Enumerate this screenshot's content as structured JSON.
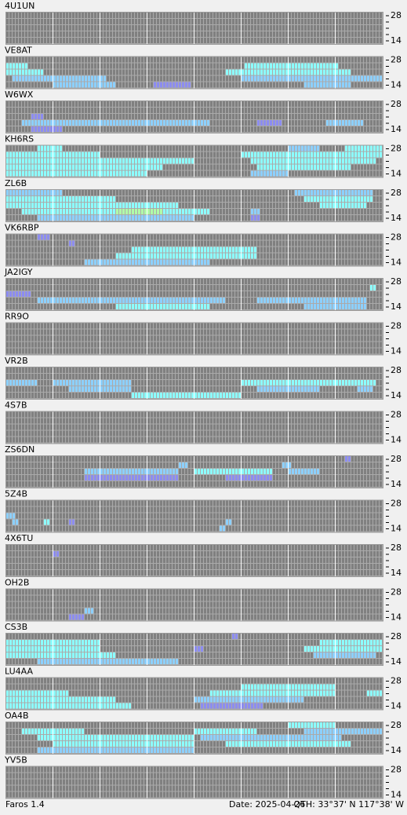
{
  "band_labels": {
    "top": "28",
    "bottom": "14"
  },
  "colors": [
    "#808080",
    "#8c8cf0",
    "#8cd0ff",
    "#8cffff",
    "#b0ffa8"
  ],
  "panels": [
    {
      "name": "4U1UN",
      "runs": []
    },
    {
      "name": "VE8AT",
      "runs": [
        [
          1,
          0,
          7,
          3
        ],
        [
          2,
          0,
          12,
          3
        ],
        [
          3,
          2,
          30,
          2
        ],
        [
          4,
          15,
          20,
          2
        ],
        [
          4,
          47,
          12,
          1
        ],
        [
          2,
          70,
          40,
          3
        ],
        [
          1,
          76,
          30,
          3
        ],
        [
          3,
          75,
          45,
          2
        ],
        [
          4,
          95,
          15,
          2
        ]
      ]
    },
    {
      "name": "W6WX",
      "runs": [
        [
          3,
          5,
          60,
          2
        ],
        [
          4,
          8,
          10,
          1
        ],
        [
          2,
          8,
          4,
          1
        ],
        [
          3,
          80,
          8,
          1
        ],
        [
          3,
          102,
          12,
          2
        ]
      ]
    },
    {
      "name": "KH6RS",
      "runs": [
        [
          0,
          10,
          8,
          3
        ],
        [
          1,
          0,
          30,
          3
        ],
        [
          2,
          0,
          60,
          3
        ],
        [
          3,
          0,
          50,
          3
        ],
        [
          4,
          0,
          45,
          3
        ],
        [
          1,
          75,
          45,
          3
        ],
        [
          2,
          78,
          40,
          3
        ],
        [
          3,
          80,
          30,
          3
        ],
        [
          0,
          90,
          10,
          2
        ],
        [
          0,
          108,
          12,
          3
        ],
        [
          4,
          78,
          12,
          2
        ]
      ]
    },
    {
      "name": "ZL6B",
      "runs": [
        [
          0,
          0,
          18,
          2
        ],
        [
          1,
          0,
          35,
          3
        ],
        [
          2,
          0,
          55,
          3
        ],
        [
          3,
          5,
          60,
          3
        ],
        [
          4,
          10,
          50,
          2
        ],
        [
          3,
          35,
          15,
          4
        ],
        [
          0,
          92,
          25,
          2
        ],
        [
          1,
          95,
          22,
          3
        ],
        [
          2,
          100,
          15,
          3
        ],
        [
          3,
          78,
          3,
          2
        ],
        [
          4,
          78,
          3,
          1
        ]
      ]
    },
    {
      "name": "VK6RBP",
      "runs": [
        [
          0,
          10,
          4,
          1
        ],
        [
          1,
          20,
          2,
          1
        ],
        [
          2,
          40,
          40,
          3
        ],
        [
          3,
          35,
          45,
          3
        ],
        [
          4,
          25,
          40,
          2
        ]
      ]
    },
    {
      "name": "JA2IGY",
      "runs": [
        [
          2,
          0,
          8,
          1
        ],
        [
          3,
          10,
          60,
          2
        ],
        [
          4,
          35,
          30,
          3
        ],
        [
          3,
          80,
          35,
          2
        ],
        [
          1,
          116,
          2,
          3
        ],
        [
          4,
          95,
          20,
          2
        ]
      ]
    },
    {
      "name": "RR9O",
      "runs": []
    },
    {
      "name": "VR2B",
      "runs": [
        [
          2,
          0,
          10,
          2
        ],
        [
          2,
          15,
          25,
          2
        ],
        [
          3,
          20,
          20,
          2
        ],
        [
          4,
          40,
          35,
          3
        ],
        [
          2,
          75,
          35,
          3
        ],
        [
          3,
          80,
          20,
          2
        ],
        [
          2,
          110,
          8,
          3
        ],
        [
          3,
          112,
          5,
          2
        ]
      ]
    },
    {
      "name": "4S7B",
      "runs": []
    },
    {
      "name": "ZS6DN",
      "runs": [
        [
          1,
          55,
          3,
          2
        ],
        [
          2,
          25,
          30,
          2
        ],
        [
          3,
          25,
          30,
          1
        ],
        [
          2,
          60,
          25,
          3
        ],
        [
          3,
          70,
          15,
          1
        ],
        [
          1,
          88,
          3,
          2
        ],
        [
          2,
          90,
          10,
          2
        ],
        [
          0,
          108,
          2,
          1
        ]
      ]
    },
    {
      "name": "5Z4B",
      "runs": [
        [
          2,
          0,
          3,
          2
        ],
        [
          3,
          2,
          2,
          2
        ],
        [
          3,
          12,
          2,
          3
        ],
        [
          3,
          20,
          2,
          1
        ],
        [
          4,
          68,
          2,
          2
        ],
        [
          3,
          70,
          2,
          2
        ]
      ]
    },
    {
      "name": "4X6TU",
      "runs": [
        [
          1,
          15,
          2,
          1
        ]
      ]
    },
    {
      "name": "OH2B",
      "runs": [
        [
          3,
          25,
          3,
          2
        ],
        [
          4,
          20,
          5,
          1
        ]
      ]
    },
    {
      "name": "CS3B",
      "runs": [
        [
          1,
          0,
          30,
          3
        ],
        [
          2,
          0,
          30,
          3
        ],
        [
          3,
          0,
          35,
          3
        ],
        [
          4,
          10,
          45,
          2
        ],
        [
          2,
          60,
          3,
          1
        ],
        [
          1,
          100,
          20,
          3
        ],
        [
          2,
          95,
          25,
          3
        ],
        [
          3,
          98,
          20,
          2
        ],
        [
          0,
          72,
          2,
          1
        ]
      ]
    },
    {
      "name": "LU4AA",
      "runs": [
        [
          2,
          0,
          20,
          3
        ],
        [
          3,
          0,
          35,
          3
        ],
        [
          4,
          0,
          40,
          3
        ],
        [
          1,
          75,
          30,
          3
        ],
        [
          2,
          65,
          40,
          3
        ],
        [
          3,
          60,
          35,
          2
        ],
        [
          4,
          62,
          20,
          1
        ],
        [
          2,
          115,
          5,
          3
        ]
      ]
    },
    {
      "name": "OA4B",
      "runs": [
        [
          1,
          5,
          20,
          3
        ],
        [
          2,
          10,
          50,
          3
        ],
        [
          3,
          15,
          45,
          3
        ],
        [
          4,
          10,
          50,
          2
        ],
        [
          1,
          60,
          20,
          3
        ],
        [
          2,
          62,
          45,
          2
        ],
        [
          3,
          70,
          40,
          3
        ],
        [
          0,
          90,
          15,
          3
        ],
        [
          1,
          95,
          25,
          2
        ]
      ]
    },
    {
      "name": "YV5B",
      "runs": []
    }
  ],
  "footer": {
    "app": "Faros 1.4",
    "date": "Date: 2025-04-26",
    "qth": "QTH: 33°37' N  117°38' W"
  }
}
